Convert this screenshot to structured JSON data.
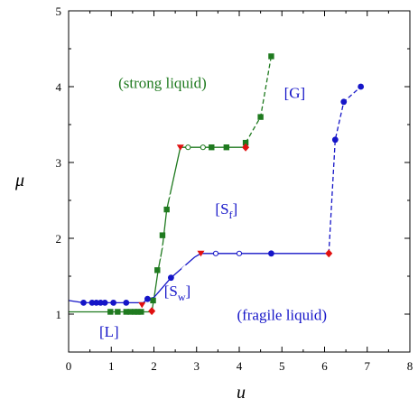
{
  "chart_data": {
    "type": "line",
    "xlabel": "u",
    "ylabel": "μ",
    "xlim": [
      0,
      8
    ],
    "ylim": [
      0.5,
      5
    ],
    "x_ticks": [
      0,
      1,
      2,
      3,
      4,
      5,
      6,
      7,
      8
    ],
    "y_ticks": [
      1,
      2,
      3,
      4,
      5
    ],
    "x_tick_labels": [
      "0",
      "1",
      "2",
      "3",
      "4",
      "5",
      "6",
      "7",
      "8"
    ],
    "y_tick_labels": [
      "1",
      "2",
      "3",
      "4",
      "5"
    ],
    "grid": false,
    "legend": "none",
    "colors": {
      "green": "#1f7a1f",
      "blue": "#1515c8",
      "red": "#e01010",
      "axis": "#000000"
    },
    "series": [
      {
        "color": "green",
        "marker": "square",
        "solid": {
          "x": [
            0.0,
            1.0,
            1.1,
            1.3,
            1.4,
            1.5,
            1.6,
            1.7,
            1.95,
            2.0,
            2.1,
            2.2,
            2.3,
            2.62,
            2.7,
            2.8,
            3.0,
            3.2,
            3.35,
            3.7,
            4.15
          ],
          "y": [
            1.03,
            1.03,
            1.03,
            1.03,
            1.03,
            1.03,
            1.03,
            1.03,
            1.03,
            1.2,
            1.58,
            1.88,
            2.38,
            3.2,
            3.2,
            3.2,
            3.2,
            3.2,
            3.2,
            3.2,
            3.2
          ]
        },
        "dashed": {
          "x": [
            4.15,
            4.5,
            4.75
          ],
          "y": [
            3.26,
            3.6,
            4.4
          ]
        },
        "points": [
          {
            "x": 0.98,
            "y": 1.03,
            "m": "square"
          },
          {
            "x": 1.15,
            "y": 1.03,
            "m": "square"
          },
          {
            "x": 1.35,
            "y": 1.03,
            "m": "square"
          },
          {
            "x": 1.45,
            "y": 1.03,
            "m": "square"
          },
          {
            "x": 1.55,
            "y": 1.03,
            "m": "square"
          },
          {
            "x": 1.62,
            "y": 1.03,
            "m": "square"
          },
          {
            "x": 1.7,
            "y": 1.03,
            "m": "square"
          },
          {
            "x": 1.98,
            "y": 1.18,
            "m": "square"
          },
          {
            "x": 2.08,
            "y": 1.58,
            "m": "square"
          },
          {
            "x": 2.2,
            "y": 2.04,
            "m": "square"
          },
          {
            "x": 2.3,
            "y": 2.38,
            "m": "square"
          },
          {
            "x": 3.35,
            "y": 3.2,
            "m": "square"
          },
          {
            "x": 3.7,
            "y": 3.2,
            "m": "square"
          },
          {
            "x": 4.15,
            "y": 3.26,
            "m": "square"
          },
          {
            "x": 4.5,
            "y": 3.6,
            "m": "square"
          },
          {
            "x": 4.75,
            "y": 4.4,
            "m": "square"
          },
          {
            "x": 2.12,
            "y": 1.73,
            "m": "tick"
          },
          {
            "x": 2.22,
            "y": 1.9,
            "m": "tick"
          },
          {
            "x": 2.35,
            "y": 2.55,
            "m": "tick"
          },
          {
            "x": 2.8,
            "y": 3.2,
            "m": "open-circle"
          },
          {
            "x": 3.15,
            "y": 3.2,
            "m": "open-circle"
          }
        ]
      },
      {
        "color": "blue",
        "marker": "circle",
        "solid": {
          "x": [
            0.0,
            0.35,
            0.55,
            0.65,
            0.75,
            0.85,
            1.05,
            1.35,
            1.75,
            1.85,
            2.0,
            2.4,
            2.95,
            3.1,
            3.3,
            4.7,
            6.1
          ],
          "y": [
            1.18,
            1.15,
            1.15,
            1.15,
            1.15,
            1.15,
            1.15,
            1.15,
            1.15,
            1.2,
            1.22,
            1.48,
            1.75,
            1.8,
            1.8,
            1.8,
            1.8
          ]
        },
        "dashed": {
          "x": [
            6.1,
            6.25,
            6.45,
            6.85
          ],
          "y": [
            1.8,
            3.3,
            3.8,
            4.0
          ]
        },
        "points": [
          {
            "x": 0.35,
            "y": 1.15,
            "m": "circle"
          },
          {
            "x": 0.55,
            "y": 1.15,
            "m": "circle"
          },
          {
            "x": 0.65,
            "y": 1.15,
            "m": "circle"
          },
          {
            "x": 0.75,
            "y": 1.15,
            "m": "circle"
          },
          {
            "x": 0.85,
            "y": 1.15,
            "m": "circle"
          },
          {
            "x": 1.05,
            "y": 1.15,
            "m": "circle"
          },
          {
            "x": 1.35,
            "y": 1.15,
            "m": "circle"
          },
          {
            "x": 1.85,
            "y": 1.2,
            "m": "circle"
          },
          {
            "x": 2.4,
            "y": 1.48,
            "m": "circle"
          },
          {
            "x": 4.75,
            "y": 1.8,
            "m": "circle"
          },
          {
            "x": 6.25,
            "y": 3.3,
            "m": "circle"
          },
          {
            "x": 6.45,
            "y": 3.8,
            "m": "circle"
          },
          {
            "x": 6.85,
            "y": 4.0,
            "m": "circle"
          },
          {
            "x": 2.7,
            "y": 1.62,
            "m": "tick"
          },
          {
            "x": 3.45,
            "y": 1.8,
            "m": "open-circle"
          },
          {
            "x": 4.0,
            "y": 1.8,
            "m": "open-circle"
          }
        ]
      },
      {
        "color": "red",
        "marker": "mixed",
        "points": [
          {
            "x": 1.72,
            "y": 1.12,
            "m": "triangle-down"
          },
          {
            "x": 1.95,
            "y": 1.04,
            "m": "diamond"
          },
          {
            "x": 2.62,
            "y": 3.2,
            "m": "triangle-down"
          },
          {
            "x": 3.1,
            "y": 1.8,
            "m": "triangle-down"
          },
          {
            "x": 4.15,
            "y": 3.2,
            "m": "diamond"
          },
          {
            "x": 6.1,
            "y": 1.8,
            "m": "diamond"
          }
        ]
      }
    ],
    "annotations": [
      {
        "id": "strong",
        "text": "(strong liquid)",
        "x": 2.2,
        "y": 3.98,
        "color": "green",
        "sub": ""
      },
      {
        "id": "G",
        "text": "[G]",
        "x": 5.3,
        "y": 3.85,
        "color": "blue",
        "sub": ""
      },
      {
        "id": "Sf",
        "text": "[S",
        "sub": "f",
        "close": "]",
        "x": 3.7,
        "y": 2.32,
        "color": "blue"
      },
      {
        "id": "Sw",
        "text": "[S",
        "sub": "w",
        "close": "]",
        "x": 2.55,
        "y": 1.24,
        "color": "blue"
      },
      {
        "id": "fragile",
        "text": "(fragile liquid)",
        "x": 5.0,
        "y": 0.92,
        "color": "blue",
        "sub": ""
      },
      {
        "id": "L",
        "text": "[L]",
        "x": 0.95,
        "y": 0.7,
        "color": "blue",
        "sub": ""
      }
    ]
  }
}
